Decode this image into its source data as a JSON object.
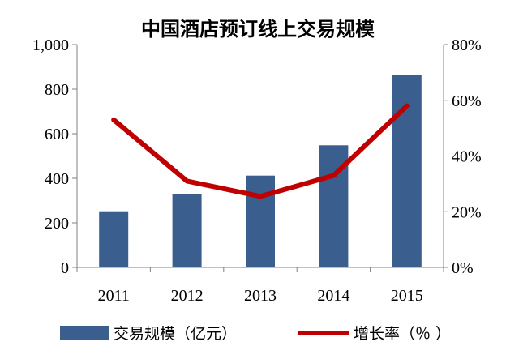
{
  "chart_data": {
    "type": "bar",
    "title": "中国酒店预订线上交易规模",
    "categories": [
      "2011",
      "2012",
      "2013",
      "2014",
      "2015"
    ],
    "series": [
      {
        "name": "交易规模（亿元）",
        "type": "bar",
        "axis": "left",
        "color": "#3a5f8f",
        "values": [
          252,
          330,
          412,
          548,
          862
        ]
      },
      {
        "name": "增长率（%）",
        "type": "line",
        "axis": "right",
        "color": "#c00000",
        "values": [
          53,
          31,
          25.5,
          33,
          58
        ]
      }
    ],
    "y_left": {
      "min": 0,
      "max": 1000,
      "ticks": [
        0,
        200,
        400,
        600,
        800,
        1000
      ],
      "tick_labels": [
        "0",
        "200",
        "400",
        "600",
        "800",
        "1,000"
      ]
    },
    "y_right": {
      "min": 0,
      "max": 80,
      "ticks": [
        0,
        20,
        40,
        60,
        80
      ],
      "tick_labels": [
        "0%",
        "20%",
        "40%",
        "60%",
        "80%"
      ]
    },
    "legend": {
      "position": "bottom",
      "bar_label": "交易规模（亿元）",
      "line_label": "增长率（％ ）"
    },
    "grid": false
  }
}
